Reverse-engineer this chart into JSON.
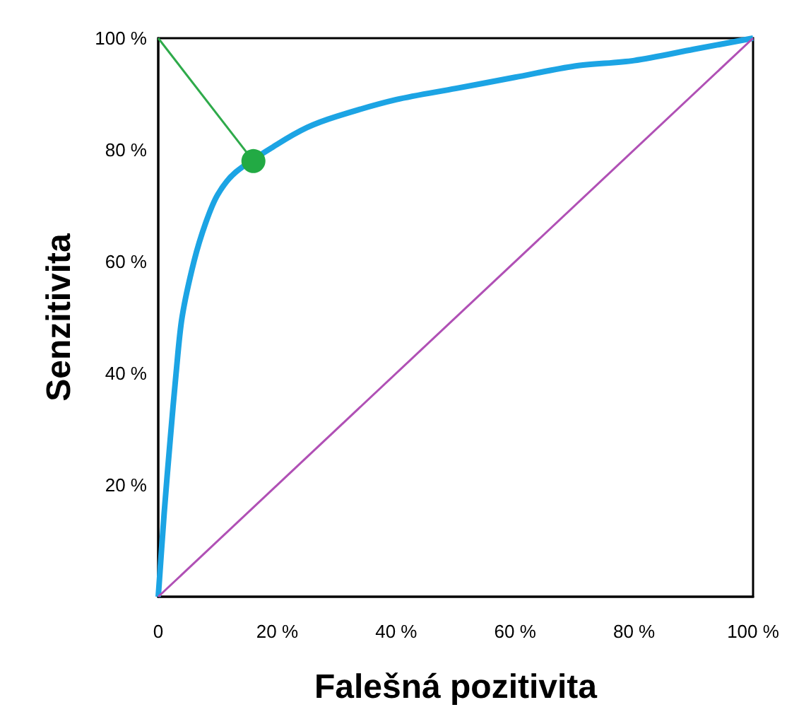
{
  "chart_data": {
    "type": "line",
    "xlabel": "Falešná pozitivita",
    "ylabel": "Senzitivita",
    "xlim": [
      0,
      100
    ],
    "ylim": [
      0,
      100
    ],
    "xticks": [
      {
        "value": 0,
        "label": "0"
      },
      {
        "value": 20,
        "label": "20 %"
      },
      {
        "value": 40,
        "label": "40 %"
      },
      {
        "value": 60,
        "label": "60 %"
      },
      {
        "value": 80,
        "label": "80 %"
      },
      {
        "value": 100,
        "label": "100 %"
      }
    ],
    "yticks": [
      {
        "value": 0,
        "label": null
      },
      {
        "value": 20,
        "label": "20 %"
      },
      {
        "value": 40,
        "label": "40 %"
      },
      {
        "value": 60,
        "label": "60 %"
      },
      {
        "value": 80,
        "label": "80 %"
      },
      {
        "value": 100,
        "label": "100 %"
      }
    ],
    "grid": false,
    "marker": "none",
    "series": [
      {
        "color": "#1ca4e4",
        "x": [
          0,
          1,
          2,
          3,
          4,
          6,
          8,
          10,
          13,
          20,
          25,
          30,
          40,
          50,
          60,
          70,
          80,
          90,
          100
        ],
        "values": [
          0,
          15,
          28,
          40,
          50,
          60,
          67,
          72,
          76,
          81,
          84,
          86,
          89,
          91,
          93,
          95,
          96,
          98,
          100
        ]
      },
      {
        "color": "#b050b5",
        "x": [
          0,
          100
        ],
        "values": [
          0,
          100
        ]
      },
      {
        "color": "#2eaa4a",
        "x": [
          0,
          16
        ],
        "values": [
          100,
          78
        ]
      },
      {
        "type": "scatter",
        "color": "#22aa44",
        "x": [
          16
        ],
        "values": [
          78
        ],
        "marker": "circle"
      }
    ]
  }
}
